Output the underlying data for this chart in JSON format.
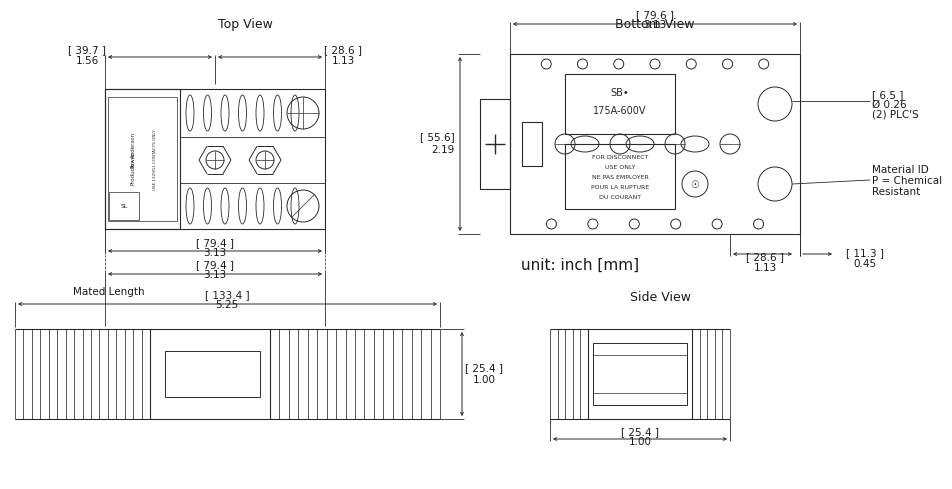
{
  "bg_color": "#ffffff",
  "line_color": "#2a2a2a",
  "dim_color": "#2a2a2a",
  "title_fontsize": 9,
  "label_fontsize": 7.5,
  "dim_fontsize": 7.5,
  "small_fontsize": 5.5,
  "title_top_view": "Top View",
  "title_bottom_view": "Bottom View",
  "title_side_view": "Side View",
  "unit_text": "unit: inch [mm]",
  "mated_length_text": "Mated Length",
  "dims": {
    "top_left_mm": "[ 39.7 ]",
    "top_left_in": "1.56",
    "top_right_mm": "[ 28.6 ]",
    "top_right_in": "1.13",
    "top_width_mm": "[ 79.4 ]",
    "top_width_in": "3.13",
    "bottom_width_mm": "[ 79.6 ]",
    "bottom_width_in": "3.13",
    "bottom_height_mm": "[ 55.6]",
    "bottom_height_in": "2.19",
    "bottom_right1_mm": "[ 6.5 ]",
    "bottom_right1_in": "Ø 0.26",
    "bottom_right1_label": "(2) PLC'S",
    "bottom_right2_label1": "Material ID",
    "bottom_right2_label2": "P = Chemical",
    "bottom_right2_label3": "Resistant",
    "bottom_bot_left_mm": "[ 28.6 ]",
    "bottom_bot_left_in": "1.13",
    "bottom_bot_right_mm": "[ 11.3 ]",
    "bottom_bot_right_in": "0.45",
    "mated_mm": "[ 133.4 ]",
    "mated_in": "5.25",
    "front_height_mm": "[ 25.4 ]",
    "front_height_in": "1.00",
    "side_width_mm": "[ 25.4 ]",
    "side_width_in": "1.00"
  }
}
